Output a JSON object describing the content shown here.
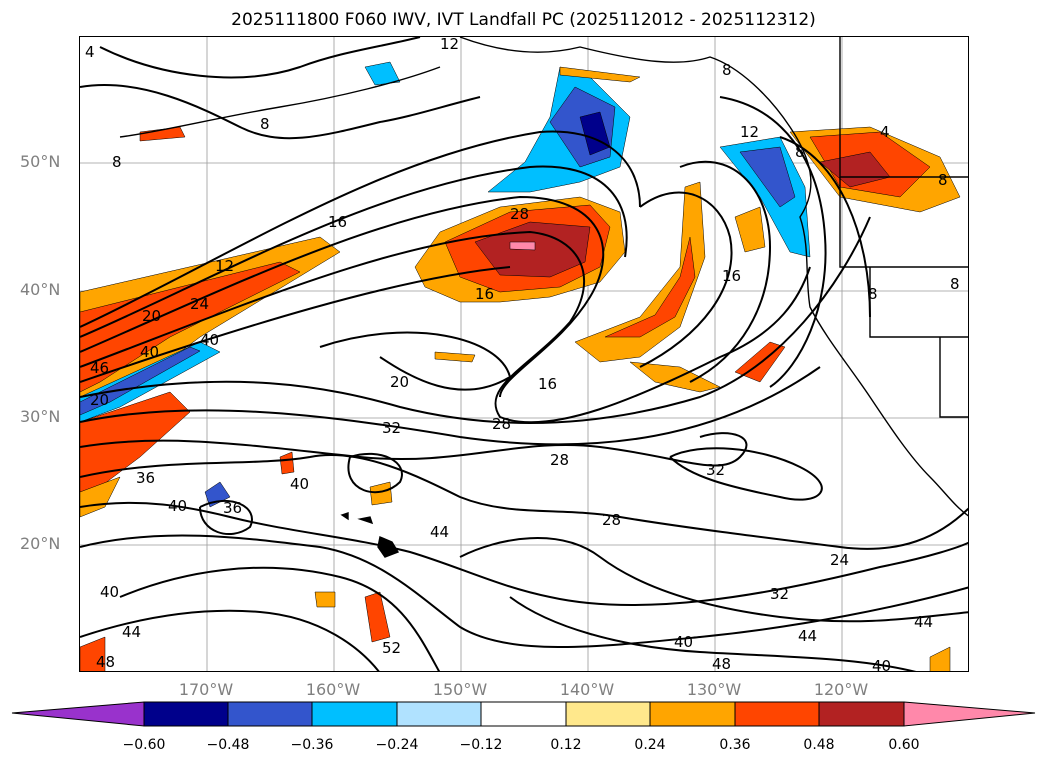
{
  "title": "2025111800 F060 IWV, IVT Landfall PC (2025112012 - 2025112312)",
  "lat_labels": [
    "50°N",
    "40°N",
    "30°N",
    "20°N"
  ],
  "lon_labels": [
    "170°W",
    "160°W",
    "150°W",
    "140°W",
    "130°W",
    "120°W"
  ],
  "colorbar": {
    "ticks": [
      "−0.60",
      "−0.48",
      "−0.36",
      "−0.24",
      "−0.12",
      "0.12",
      "0.24",
      "0.36",
      "0.48",
      "0.60"
    ],
    "colors": [
      "#9932cc",
      "#00008b",
      "#3355cc",
      "#00bfff",
      "#b0e2ff",
      "#ffffff",
      "#ffe88c",
      "#ffa500",
      "#ff4500",
      "#b22222",
      "#ff88aa"
    ]
  },
  "contour_labels": [
    "4",
    "12",
    "8",
    "8",
    "8",
    "12",
    "16",
    "28",
    "12",
    "20",
    "24",
    "40",
    "16",
    "20",
    "40",
    "46",
    "20",
    "16",
    "28",
    "32",
    "36",
    "28",
    "40",
    "32",
    "40",
    "36",
    "28",
    "44",
    "24",
    "40",
    "32",
    "44",
    "52",
    "40",
    "44",
    "48",
    "44",
    "40",
    "48",
    "8",
    "16",
    "8",
    "8",
    "8",
    "4"
  ],
  "colors": {
    "coastline": "#000000",
    "grid": "#808080",
    "axis_text": "#808080"
  }
}
